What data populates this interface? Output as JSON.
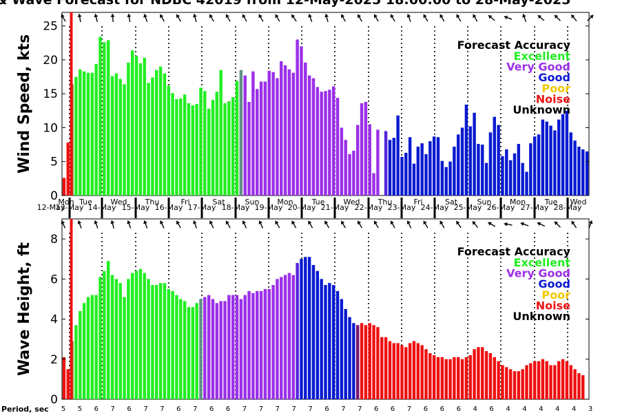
{
  "chart_data": {
    "title": "& Wave Forecast for NDBC 42019 from 12-May-2025 18:00:00 to 28-May-2025",
    "legend_title": "Forecast Accuracy",
    "legend": [
      {
        "label": "Excellent",
        "color": "#22ee22"
      },
      {
        "label": "Very Good",
        "color": "#9b30e8"
      },
      {
        "label": "Good",
        "color": "#0a1ad0"
      },
      {
        "label": "Poor",
        "color": "#f2c800"
      },
      {
        "label": "Noise",
        "color": "#ee1111"
      },
      {
        "label": "Unknown",
        "color": "#000000"
      }
    ],
    "day_names": [
      "Mon",
      "Tue",
      "Wed",
      "Thu",
      "Fri",
      "Sat",
      "Sun",
      "Mon",
      "Tue",
      "Wed",
      "Thu",
      "Fri",
      "Sat",
      "Sun",
      "Mon",
      "Tue",
      "Wed"
    ],
    "day_dates": [
      "12-May",
      "13-May",
      "14-May",
      "15-May",
      "16-May",
      "17-May",
      "18-May",
      "19-May",
      "20-May",
      "21-May",
      "22-May",
      "23-May",
      "24-May",
      "25-May",
      "26-May",
      "27-May",
      "28-May"
    ],
    "period_label": "Period, sec",
    "periods": [
      "5",
      "5",
      "6",
      "7",
      "6",
      "7",
      "7",
      "6",
      "7",
      "6",
      "6",
      "7",
      "7",
      "7",
      "7",
      "7",
      "6",
      "7",
      "7",
      "6",
      "6",
      "7",
      "6",
      "6",
      "6",
      "4",
      "6",
      "4",
      "4",
      "4",
      "4",
      "4",
      "3"
    ],
    "charts": [
      {
        "type": "bar",
        "ylabel": "Wind Speed, kts",
        "ylim": [
          0,
          27
        ],
        "yticks": [
          "0",
          "5",
          "10",
          "15",
          "20",
          "25"
        ],
        "colors": [
          "#ee1111",
          "#22ee22",
          "#9b30e8",
          "#0a1ad0",
          "#f2c800"
        ],
        "series": [
          {
            "from": 0,
            "values": [
              2.6,
              7.8
            ]
          },
          {
            "from": 2,
            "values": [
              16.4,
              17.5,
              18.6,
              18.3,
              18.1,
              18.1,
              19.4,
              23.4,
              22.6,
              22.9,
              17.6,
              18.0,
              17.2,
              16.4,
              19.6,
              21.4,
              20.6,
              19.5,
              20.3,
              16.6,
              17.4,
              18.5,
              19.0,
              18.0,
              16.2,
              15.1,
              14.2,
              14.3,
              14.9,
              13.6,
              13.3,
              13.5,
              15.9,
              15.4,
              12.8,
              14.1,
              15.3,
              18.5,
              13.6,
              13.9,
              14.5,
              16.9
            ]
          },
          {
            "from": 44,
            "values": [
              18.5,
              17.7,
              13.8,
              18.3,
              15.7,
              16.8,
              16.8,
              18.4,
              18.2,
              17.3,
              19.8,
              19.2,
              18.6,
              18.1,
              23.0,
              22.0,
              19.6,
              17.7,
              17.3,
              16.0,
              15.3,
              15.4,
              15.6,
              16.1,
              14.4,
              10.0,
              8.2,
              6.1,
              6.6,
              10.4,
              13.6,
              13.8,
              10.5,
              3.3,
              9.7
            ]
          },
          {
            "from": 80,
            "values": [
              9.5,
              8.2,
              8.5,
              11.8,
              5.7,
              6.3,
              8.6,
              4.7,
              7.2,
              7.7,
              6.1,
              8.0,
              8.7,
              8.6,
              5.1,
              4.2,
              5.0,
              7.2,
              9.0,
              10.0,
              13.4,
              10.2,
              12.2,
              7.6,
              7.5,
              4.8,
              9.3,
              11.6,
              10.4,
              5.8,
              6.8,
              5.2,
              6.2,
              7.6,
              4.8,
              3.5,
              7.7,
              8.7,
              9.0,
              11.2,
              10.9,
              10.3,
              9.6,
              11.2,
              12.0,
              12.5,
              9.3,
              8.1,
              7.2,
              6.8,
              6.5
            ]
          }
        ]
      },
      {
        "type": "bar",
        "ylabel": "Wave Height, ft",
        "ylim": [
          0,
          9
        ],
        "yticks": [
          "0",
          "2",
          "4",
          "6",
          "8"
        ],
        "colors": [
          "#ee1111",
          "#22ee22",
          "#9b30e8",
          "#0a1ad0",
          "#ee1111"
        ],
        "series": [
          {
            "from": 0,
            "values": [
              2.1,
              1.5
            ]
          },
          {
            "from": 2,
            "values": [
              2.9,
              3.7,
              4.4,
              4.8,
              5.1,
              5.2,
              5.2,
              6.1,
              6.4,
              6.9,
              6.2,
              6.0,
              5.8,
              5.1,
              6.0,
              6.3,
              6.4,
              6.5,
              6.3,
              6.0,
              5.7,
              5.7,
              5.8,
              5.8,
              5.5,
              5.4,
              5.2,
              5.0,
              4.9,
              4.6,
              4.6,
              4.8
            ]
          },
          {
            "from": 34,
            "values": [
              5.0,
              5.1,
              5.2,
              5.0,
              4.8,
              4.9,
              4.9,
              5.2,
              5.2,
              5.2,
              5.0,
              5.2,
              5.4,
              5.3,
              5.4,
              5.4,
              5.5,
              5.5,
              5.7,
              6.0,
              6.1,
              6.2,
              6.3,
              6.2
            ]
          },
          {
            "from": 58,
            "values": [
              6.8,
              7.0,
              7.1,
              7.1,
              6.7,
              6.4,
              6.0,
              5.7,
              5.8,
              5.7,
              5.4,
              5.0,
              4.5,
              4.1,
              3.8
            ]
          },
          {
            "from": 73,
            "values": [
              3.7,
              3.8,
              3.7,
              3.8,
              3.7,
              3.6,
              3.1,
              3.1,
              2.9,
              2.8,
              2.8,
              2.7,
              2.6,
              2.8,
              2.9,
              2.8,
              2.7,
              2.5,
              2.3,
              2.2,
              2.1,
              2.1,
              2.0,
              2.0,
              2.1,
              2.1,
              2.0,
              2.1,
              2.2,
              2.5,
              2.6,
              2.6,
              2.4,
              2.3,
              2.1,
              1.9,
              1.7,
              1.6,
              1.5,
              1.4,
              1.4,
              1.5,
              1.7,
              1.8,
              1.9,
              1.9,
              2.0,
              1.9,
              1.7,
              1.7,
              1.9,
              2.0,
              1.9,
              1.7,
              1.5,
              1.3,
              1.2
            ]
          }
        ]
      }
    ],
    "wind_dir_deg": [
      150,
      170,
      165,
      175,
      170,
      160,
      150,
      150,
      165,
      150,
      150,
      150,
      150,
      150,
      145,
      160,
      165,
      150,
      150,
      150,
      150,
      160,
      150,
      150,
      150,
      150,
      130,
      110,
      160,
      130,
      135,
      140,
      225
    ],
    "wave_dir_deg": [
      155,
      160,
      160,
      165,
      160,
      160,
      155,
      150,
      160,
      155,
      150,
      155,
      155,
      150,
      150,
      150,
      150,
      150,
      150,
      150,
      150,
      155,
      150,
      150,
      145,
      140,
      120,
      100,
      110,
      115,
      135,
      145,
      200
    ]
  }
}
